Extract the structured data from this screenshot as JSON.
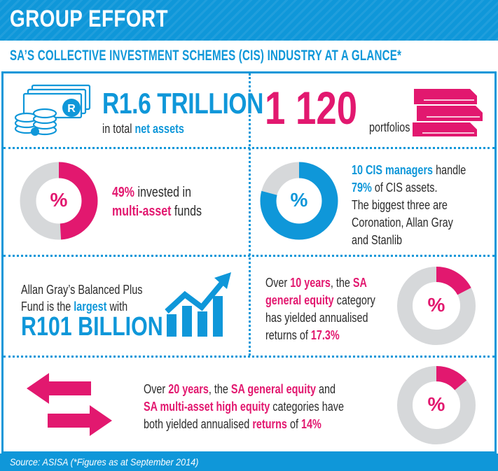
{
  "header": {
    "title": "GROUP EFFORT"
  },
  "subtitle": "SA’S COLLECTIVE INVESTMENT SCHEMES (CIS) INDUSTRY AT A GLANCE*",
  "net_assets": {
    "value": "R1.6 TRILLION",
    "pre": "in total ",
    "highlight": "net assets"
  },
  "portfolios": {
    "value": "1 120",
    "label": "portfolios"
  },
  "multi_asset": {
    "pct_label": "%",
    "value": "49%",
    "text1": " invested in",
    "highlight": "multi-asset",
    "text2": " funds",
    "fraction": 0.49
  },
  "cis_managers": {
    "pct_label": "%",
    "hl1": "10 CIS managers",
    "t1": " handle",
    "hl2": "79%",
    "t2": " of CIS assets.",
    "line3": "The biggest three are",
    "line4": "Coronation, Allan Gray",
    "line5": "and Stanlib",
    "fraction": 0.79
  },
  "largest_fund": {
    "line1": "Allan Gray’s Balanced Plus",
    "line2a": "Fund is the ",
    "line2hl": "largest",
    "line2b": " with",
    "value": "R101 BILLION"
  },
  "equity_10y": {
    "pct_label": "%",
    "t1": "Over ",
    "hl1": "10 years",
    "t2": ", the ",
    "hl2": "SA",
    "hl3": "general equity",
    "t3": " category",
    "line3": "has yielded annualised",
    "t4": "returns of ",
    "hl4": "17.3%",
    "fraction": 0.173
  },
  "equity_20y": {
    "pct_label": "%",
    "t1": "Over ",
    "hl1": "20 years",
    "t2": ", the ",
    "hl2": "SA general equity",
    "t3": " and",
    "hl3": "SA multi-asset high equity",
    "t4": " categories have",
    "t5": "both yielded annualised ",
    "hl4": "returns",
    "t6": " of ",
    "hl5": "14%",
    "fraction": 0.14
  },
  "footer": {
    "source": "Source: ASISA (*Figures as at September 2014)"
  },
  "colors": {
    "blue": "#0f97d9",
    "pink": "#e2186f",
    "grey": "#d6d8da"
  }
}
